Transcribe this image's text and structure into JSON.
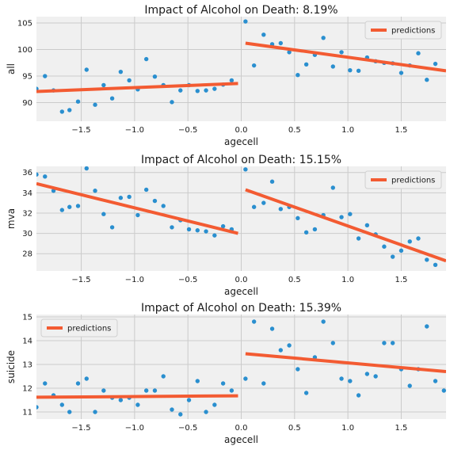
{
  "colors": {
    "points": "#2a8fcf",
    "predictions": "#f35b32",
    "background": "#f0f0f0",
    "grid": "#cbcbcb"
  },
  "chart_data": [
    {
      "type": "scatter",
      "title": "Impact of Alcohol on Death: 8.19%",
      "xlabel": "agecell",
      "ylabel": "all",
      "xlim": [
        -1.92,
        1.92
      ],
      "ylim": [
        86.5,
        106.2
      ],
      "xticks": [
        "−1.5",
        "−1.0",
        "−0.5",
        "0.0",
        "0.5",
        "1.0",
        "1.5"
      ],
      "xtick_values": [
        -1.5,
        -1.0,
        -0.5,
        0.0,
        0.5,
        1.0,
        1.5
      ],
      "yticks": [
        "90",
        "95",
        "100",
        "105"
      ],
      "ytick_values": [
        90,
        95,
        100,
        105
      ],
      "legend": "top-right",
      "series": [
        {
          "name": "",
          "kind": "points",
          "x": [
            -1.92,
            -1.84,
            -1.76,
            -1.68,
            -1.61,
            -1.53,
            -1.45,
            -1.37,
            -1.29,
            -1.21,
            -1.13,
            -1.05,
            -0.97,
            -0.89,
            -0.81,
            -0.73,
            -0.65,
            -0.57,
            -0.49,
            -0.41,
            -0.33,
            -0.25,
            -0.17,
            -0.09,
            0.04,
            0.12,
            0.21,
            0.29,
            0.37,
            0.45,
            0.53,
            0.61,
            0.69,
            0.77,
            0.86,
            0.94,
            1.02,
            1.1,
            1.18,
            1.26,
            1.34,
            1.42,
            1.5,
            1.58,
            1.66,
            1.74,
            1.82,
            1.9
          ],
          "y": [
            92.6,
            95.0,
            92.3,
            88.3,
            88.6,
            90.2,
            96.2,
            89.6,
            93.3,
            90.8,
            95.8,
            94.2,
            92.5,
            98.2,
            94.9,
            93.3,
            90.1,
            92.3,
            93.3,
            92.2,
            92.3,
            92.6,
            93.4,
            94.2,
            105.3,
            97.0,
            102.8,
            101.0,
            101.2,
            99.5,
            95.2,
            97.2,
            99.0,
            102.2,
            96.8,
            99.5,
            96.1,
            96.0,
            98.5,
            97.8,
            97.5,
            97.4,
            95.6,
            97.0,
            99.3,
            94.3,
            97.3,
            null
          ]
        },
        {
          "name": "predictions",
          "kind": "line",
          "x": [
            -1.92,
            -0.03
          ],
          "y": [
            92.1,
            93.6
          ]
        },
        {
          "name": "predictions",
          "kind": "line",
          "x": [
            0.04,
            1.92
          ],
          "y": [
            101.2,
            96.0
          ]
        }
      ]
    },
    {
      "type": "scatter",
      "title": "Impact of Alcohol on Death: 15.15%",
      "xlabel": "agecell",
      "ylabel": "mva",
      "xlim": [
        -1.92,
        1.92
      ],
      "ylim": [
        26.3,
        36.6
      ],
      "xticks": [
        "−1.5",
        "−1.0",
        "−0.5",
        "0.0",
        "0.5",
        "1.0",
        "1.5"
      ],
      "xtick_values": [
        -1.5,
        -1.0,
        -0.5,
        0.0,
        0.5,
        1.0,
        1.5
      ],
      "yticks": [
        "28",
        "30",
        "32",
        "34",
        "36"
      ],
      "ytick_values": [
        28,
        30,
        32,
        34,
        36
      ],
      "legend": "top-right",
      "series": [
        {
          "name": "",
          "kind": "points",
          "x": [
            -1.92,
            -1.84,
            -1.76,
            -1.68,
            -1.61,
            -1.53,
            -1.45,
            -1.37,
            -1.29,
            -1.21,
            -1.13,
            -1.05,
            -0.97,
            -0.89,
            -0.81,
            -0.73,
            -0.65,
            -0.57,
            -0.49,
            -0.41,
            -0.33,
            -0.25,
            -0.17,
            -0.09,
            0.04,
            0.12,
            0.21,
            0.29,
            0.37,
            0.45,
            0.53,
            0.61,
            0.69,
            0.77,
            0.86,
            0.94,
            1.02,
            1.1,
            1.18,
            1.26,
            1.34,
            1.42,
            1.5,
            1.58,
            1.66,
            1.74,
            1.82,
            1.9
          ],
          "y": [
            35.8,
            35.6,
            34.2,
            32.3,
            32.6,
            32.7,
            36.4,
            34.2,
            31.9,
            30.6,
            33.5,
            33.6,
            31.8,
            34.3,
            33.2,
            32.7,
            30.6,
            31.3,
            30.4,
            30.3,
            30.2,
            29.8,
            30.7,
            30.4,
            36.3,
            32.6,
            33.0,
            35.1,
            32.4,
            32.6,
            31.5,
            30.1,
            30.4,
            31.8,
            34.5,
            31.6,
            31.9,
            29.5,
            30.8,
            29.9,
            28.7,
            27.7,
            28.3,
            29.2,
            29.5,
            27.4,
            26.9,
            null
          ]
        },
        {
          "name": "predictions",
          "kind": "line",
          "x": [
            -1.92,
            -0.03
          ],
          "y": [
            34.9,
            30.0
          ]
        },
        {
          "name": "predictions",
          "kind": "line",
          "x": [
            0.04,
            1.92
          ],
          "y": [
            34.3,
            27.3
          ]
        }
      ]
    },
    {
      "type": "scatter",
      "title": "Impact of Alcohol on Death: 15.39%",
      "xlabel": "agecell",
      "ylabel": "suicide",
      "xlim": [
        -1.92,
        1.92
      ],
      "ylim": [
        10.7,
        15.1
      ],
      "xticks": [
        "−1.5",
        "−1.0",
        "−0.5",
        "0.0",
        "0.5",
        "1.0",
        "1.5"
      ],
      "xtick_values": [
        -1.5,
        -1.0,
        -0.5,
        0.0,
        0.5,
        1.0,
        1.5
      ],
      "yticks": [
        "11",
        "12",
        "13",
        "14",
        "15"
      ],
      "ytick_values": [
        11,
        12,
        13,
        14,
        15
      ],
      "legend": "top-left",
      "series": [
        {
          "name": "",
          "kind": "points",
          "x": [
            -1.92,
            -1.84,
            -1.76,
            -1.68,
            -1.61,
            -1.53,
            -1.45,
            -1.37,
            -1.29,
            -1.21,
            -1.13,
            -1.05,
            -0.97,
            -0.89,
            -0.81,
            -0.73,
            -0.65,
            -0.57,
            -0.49,
            -0.41,
            -0.33,
            -0.25,
            -0.17,
            -0.09,
            0.04,
            0.12,
            0.21,
            0.29,
            0.37,
            0.45,
            0.53,
            0.61,
            0.69,
            0.77,
            0.86,
            0.94,
            1.02,
            1.1,
            1.18,
            1.26,
            1.34,
            1.42,
            1.5,
            1.58,
            1.66,
            1.74,
            1.82,
            1.9
          ],
          "y": [
            11.2,
            12.2,
            11.7,
            11.3,
            11.0,
            12.2,
            12.4,
            11.0,
            11.9,
            11.6,
            11.5,
            11.6,
            11.3,
            11.9,
            11.9,
            12.5,
            11.1,
            10.9,
            11.5,
            12.3,
            11.0,
            11.3,
            12.2,
            11.9,
            12.4,
            14.8,
            12.2,
            14.5,
            13.6,
            13.8,
            12.8,
            11.8,
            13.3,
            14.8,
            13.9,
            12.4,
            12.3,
            11.7,
            12.6,
            12.5,
            13.9,
            13.9,
            12.8,
            12.1,
            12.8,
            14.6,
            12.3,
            11.9
          ]
        },
        {
          "name": "predictions",
          "kind": "line",
          "x": [
            -1.92,
            -0.03
          ],
          "y": [
            11.62,
            11.68
          ]
        },
        {
          "name": "predictions",
          "kind": "line",
          "x": [
            0.04,
            1.92
          ],
          "y": [
            13.45,
            12.7
          ]
        }
      ]
    }
  ]
}
